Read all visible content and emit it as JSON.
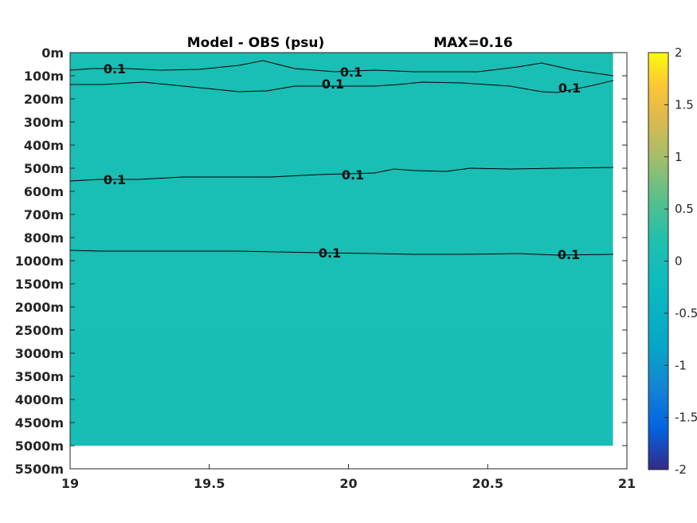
{
  "chart_data": {
    "type": "heatmap",
    "title_left": "Model - OBS (psu)",
    "title_right": "MAX=0.16",
    "x_ticks": [
      "19",
      "19.5",
      "20",
      "20.5",
      "21"
    ],
    "xlim": [
      19,
      21
    ],
    "x_data_extent": [
      19,
      20.95
    ],
    "y_tick_labels": [
      "0m",
      "100m",
      "200m",
      "300m",
      "400m",
      "500m",
      "600m",
      "700m",
      "800m",
      "1000m",
      "1500m",
      "2000m",
      "2500m",
      "3000m",
      "3500m",
      "4000m",
      "4500m",
      "5000m",
      "5500m"
    ],
    "y_data_bottom_label": "5000m",
    "colorbar": {
      "ticks": [
        "2",
        "1.5",
        "1",
        "0.5",
        "0",
        "-0.5",
        "-1",
        "-1.5",
        "-2"
      ],
      "range": [
        -2,
        2
      ],
      "colormap": "parula"
    },
    "depth_bands": [
      {
        "from": "0m",
        "to": "20m",
        "value": 0.02
      },
      {
        "from": "20m",
        "to": "200m",
        "value": 0.12
      },
      {
        "from": "200m",
        "to": "500m",
        "value": 0.06
      },
      {
        "from": "500m",
        "to": "900m",
        "value": 0.14
      },
      {
        "from": "900m",
        "to": "2500m",
        "value": 0.05
      },
      {
        "from": "2500m",
        "to": "5000m",
        "value": 0.0
      }
    ],
    "contour_level": 0.1,
    "contour_labels": [
      "0.1",
      "0.1",
      "0.1",
      "0.1",
      "0.1",
      "0.1",
      "0.1",
      "0.1",
      "0.1",
      "0.1"
    ]
  }
}
